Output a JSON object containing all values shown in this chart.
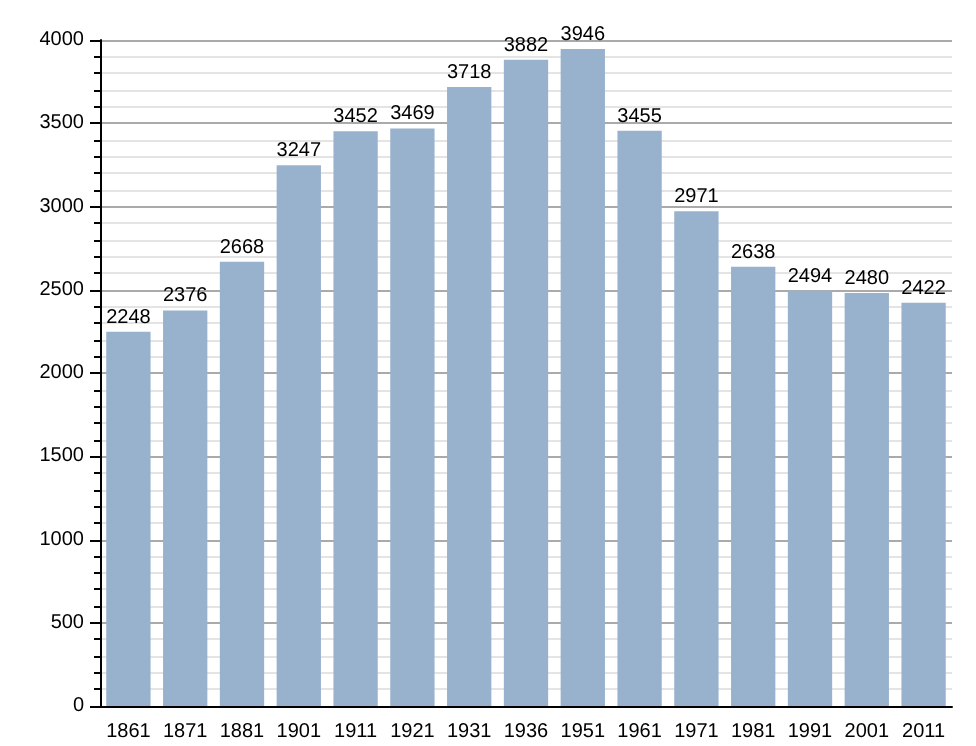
{
  "chart_data": {
    "type": "bar",
    "categories": [
      "1861",
      "1871",
      "1881",
      "1901",
      "1911",
      "1921",
      "1931",
      "1936",
      "1951",
      "1961",
      "1971",
      "1981",
      "1991",
      "2001",
      "2011"
    ],
    "values": [
      2248,
      2376,
      2668,
      3247,
      3452,
      3469,
      3718,
      3882,
      3946,
      3455,
      2971,
      2638,
      2494,
      2480,
      2422
    ],
    "color": "#98b2cd",
    "ylim": [
      0,
      4000
    ],
    "yticks": [
      0,
      500,
      1000,
      1500,
      2000,
      2500,
      3000,
      3500,
      4000
    ],
    "grid": "y",
    "data_labels": true
  }
}
